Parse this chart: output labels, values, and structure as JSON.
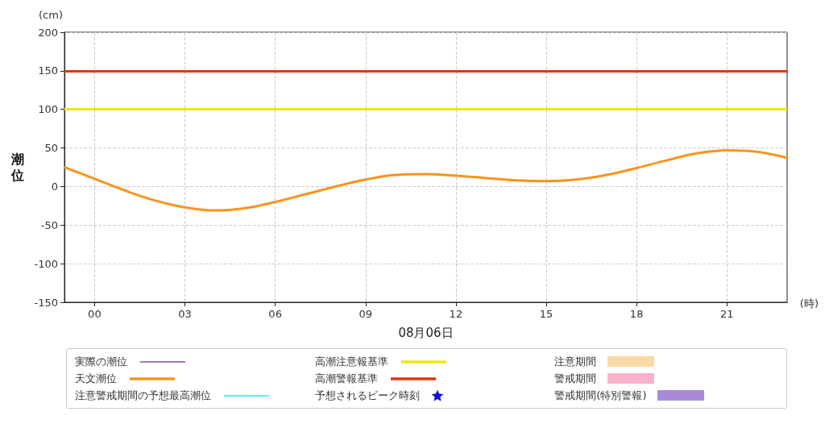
{
  "chart_data": {
    "type": "line",
    "xlabel": "08月06日",
    "ylabel": "潮位",
    "annotations": [
      "(cm)",
      "(時)"
    ],
    "xlim": [
      -1,
      23
    ],
    "xticks": [
      {
        "value": 0,
        "label": "00"
      },
      {
        "value": 3,
        "label": "03"
      },
      {
        "value": 6,
        "label": "06"
      },
      {
        "value": 9,
        "label": "09"
      },
      12,
      15,
      18,
      21
    ],
    "ylim": [
      -150,
      200
    ],
    "yticks": [
      -150,
      -100,
      -50,
      0,
      50,
      100,
      150,
      200
    ],
    "grid": true,
    "legend": "bottom",
    "marker": "none",
    "series": [
      {
        "name": "実際の潮位",
        "color": "#7b52a6"
      },
      {
        "name": "天文潮位",
        "color": "#f7941d",
        "x": [
          -1,
          0,
          1,
          2,
          3,
          4,
          5,
          6,
          7,
          8,
          9,
          10,
          11,
          12,
          13,
          14,
          15,
          16,
          17,
          18,
          19,
          20,
          21,
          22,
          23
        ],
        "values": [
          25,
          10,
          -5,
          -18,
          -27,
          -31,
          -28,
          -20,
          -10,
          0,
          9,
          15,
          16,
          14,
          11,
          8,
          7,
          9,
          15,
          24,
          34,
          43,
          47,
          45,
          37
        ]
      },
      {
        "name": "注意警戒期間の予想最高潮位",
        "color": "#33e6f0"
      },
      {
        "name": "予想されるピーク時刻",
        "type": "scatter",
        "marker": "star",
        "color": "#1010e0"
      },
      {
        "name": "注意期間",
        "type": "area",
        "color": "#fad9a8"
      },
      {
        "name": "警戒期間",
        "type": "area",
        "color": "#f9b1cc"
      },
      {
        "name": "警戒期間(特別警報)",
        "type": "area",
        "color": "#a98ad8"
      }
    ],
    "ref_lines": [
      {
        "axis": "y",
        "value": 100,
        "label": "高潮注意報基準",
        "color": "#f0e514"
      },
      {
        "axis": "y",
        "value": 150,
        "label": "高潮警報基準",
        "color": "#e8320c"
      }
    ]
  }
}
